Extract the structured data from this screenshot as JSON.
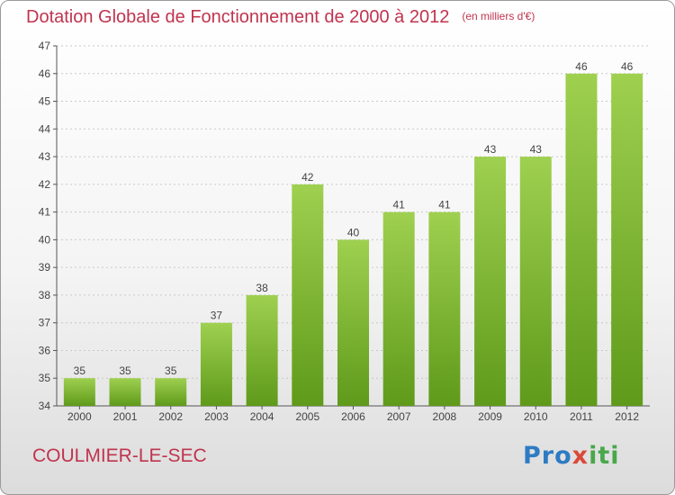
{
  "title": "Dotation Globale de Fonctionnement de 2000 à 2012",
  "unit_note": "(en milliers d'€)",
  "commune": "COULMIER-LE-SEC",
  "logo": {
    "p1": "Pro",
    "p2": "x",
    "p3": "iti"
  },
  "colors": {
    "title": "#c0344e",
    "bar_top": "#9fd050",
    "bar_bottom": "#5f9a1a",
    "axis": "#555555",
    "grid": "#c8c8c8"
  },
  "chart_data": {
    "type": "bar",
    "title": "Dotation Globale de Fonctionnement de 2000 à 2012",
    "xlabel": "",
    "ylabel": "",
    "categories": [
      "2000",
      "2001",
      "2002",
      "2003",
      "2004",
      "2005",
      "2006",
      "2007",
      "2008",
      "2009",
      "2010",
      "2011",
      "2012"
    ],
    "values": [
      35,
      35,
      35,
      37,
      38,
      42,
      40,
      41,
      41,
      43,
      43,
      46,
      46
    ],
    "ylim": [
      34,
      47
    ],
    "yticks": [
      34,
      35,
      36,
      37,
      38,
      39,
      40,
      41,
      42,
      43,
      44,
      45,
      46,
      47
    ],
    "grid": true
  }
}
